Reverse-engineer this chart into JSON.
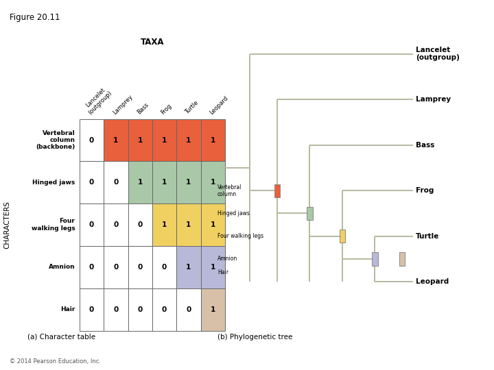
{
  "title": "Figure 20.11",
  "taxa_label": "TAXA",
  "characters_label": "CHARACTERS",
  "col_headers": [
    "Lancelet\n(outgroup)",
    "Lamprey",
    "Bass",
    "Frog",
    "Turtle",
    "Leopard"
  ],
  "row_headers": [
    "Vertebral\ncolumn\n(backbone)",
    "Hinged jaws",
    "Four\nwalking legs",
    "Amnion",
    "Hair"
  ],
  "table_data": [
    [
      0,
      1,
      1,
      1,
      1,
      1
    ],
    [
      0,
      0,
      1,
      1,
      1,
      1
    ],
    [
      0,
      0,
      0,
      1,
      1,
      1
    ],
    [
      0,
      0,
      0,
      0,
      1,
      1
    ],
    [
      0,
      0,
      0,
      0,
      0,
      1
    ]
  ],
  "cell_colors": [
    [
      "#ffffff",
      "#e8603c",
      "#e8603c",
      "#e8603c",
      "#e8603c",
      "#e8603c"
    ],
    [
      "#ffffff",
      "#ffffff",
      "#a8c8a8",
      "#a8c8a8",
      "#a8c8a8",
      "#a8c8a8"
    ],
    [
      "#ffffff",
      "#ffffff",
      "#ffffff",
      "#f0d060",
      "#f0d060",
      "#f0d060"
    ],
    [
      "#ffffff",
      "#ffffff",
      "#ffffff",
      "#ffffff",
      "#b8b8d8",
      "#b8b8d8"
    ],
    [
      "#ffffff",
      "#ffffff",
      "#ffffff",
      "#ffffff",
      "#ffffff",
      "#d8c0a8"
    ]
  ],
  "label_a": "(a) Character table",
  "label_b": "(b) Phylogenetic tree",
  "tree_taxa": [
    "Lancelet\n(outgroup)",
    "Lamprey",
    "Bass",
    "Frog",
    "Turtle",
    "Leopard"
  ],
  "tree_char_labels": [
    "Vertebral\ncolumn",
    "Hinged jaws",
    "Four walking legs",
    "Amnion",
    "Hair"
  ],
  "tree_line_color": "#b8b8a0",
  "tree_node_colors": [
    "#e8603c",
    "#a8c8a8",
    "#f0d060",
    "#b8b8d8",
    "#d8c0a8"
  ],
  "copyright": "© 2014 Pearson Education, Inc.",
  "bg_color": "#ffffff"
}
